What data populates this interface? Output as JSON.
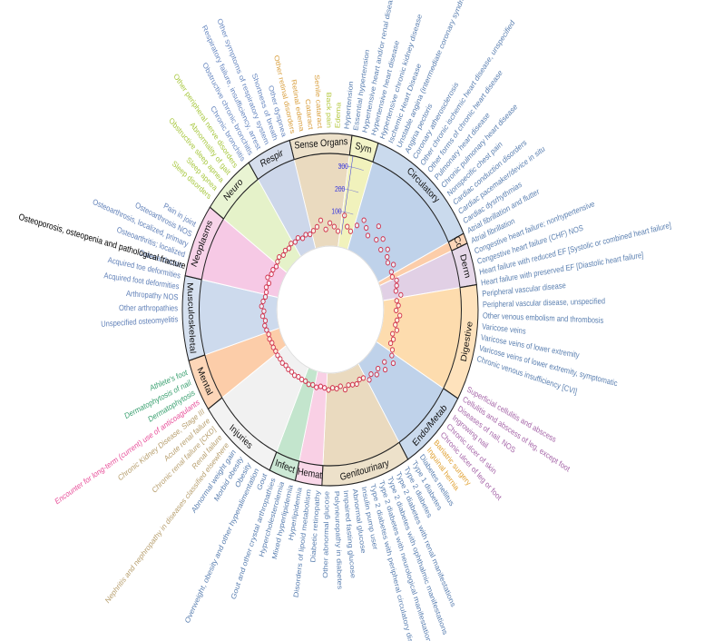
{
  "chart_data": {
    "type": "radial-manhattan",
    "rlim": [
      0,
      350
    ],
    "rticks": [
      100,
      200,
      300
    ],
    "tick_color": "#3a3adc",
    "point_color": "#d0304a",
    "annotation": "Osteoporosis, osteopenia and pathological fracture",
    "sectors": [
      {
        "name": "Sense Organs",
        "color": "#e6d4b4",
        "label_color": "#d9a040",
        "values": [
          22,
          35,
          60,
          18,
          45,
          30,
          12
        ]
      },
      {
        "name": "Sym",
        "color": "#eef0b0",
        "label_color": "#b5c840",
        "values": [
          85,
          40,
          25
        ]
      },
      {
        "name": "Circulatory",
        "color": "#b4cae6",
        "label_color": "#5a7fb0",
        "values": [
          60,
          95,
          70,
          45,
          110,
          55,
          80,
          38,
          65,
          42,
          30,
          50,
          25
        ]
      },
      {
        "name": "Cd",
        "color": "#fcc49a",
        "label_color": "#f0a060",
        "values": [
          20
        ]
      },
      {
        "name": "Derm",
        "color": "#dcc8e0",
        "label_color": "#a565a8",
        "values": [
          35,
          28,
          18,
          40
        ]
      },
      {
        "name": "Digestive",
        "color": "#fdd6a0",
        "label_color": "#e0a030",
        "values": [
          15,
          22,
          10,
          30,
          18,
          12,
          25,
          8,
          20,
          14,
          35
        ]
      },
      {
        "name": "Endo/Metab",
        "color": "#b4cae6",
        "label_color": "#5a7fb0",
        "values": [
          45,
          70,
          30,
          55,
          25,
          40,
          20,
          35
        ]
      },
      {
        "name": "Genitourinary",
        "color": "#e6d4b4",
        "label_color": "#b8a070",
        "values": [
          12,
          8,
          20,
          15,
          10,
          25,
          6,
          14,
          9,
          18
        ]
      },
      {
        "name": "Hemat",
        "color": "#f8c8e0",
        "label_color": "#e8509a",
        "values": [
          10,
          6,
          14
        ]
      },
      {
        "name": "Infect",
        "color": "#b8e0c4",
        "label_color": "#3aa070",
        "values": [
          8,
          12,
          5
        ]
      },
      {
        "name": "Injuries",
        "color": "#eeeeee",
        "label_color": "#888888",
        "values": [
          6,
          4,
          9,
          5,
          7,
          3,
          8,
          5,
          6
        ]
      },
      {
        "name": "Mental",
        "color": "#fcc49a",
        "label_color": "#f0a060",
        "values": [
          4,
          6,
          3,
          8,
          5
        ]
      },
      {
        "name": "Musculoskeletal",
        "color": "#c4d4ea",
        "label_color": "#6080b8",
        "values": [
          10,
          15,
          8,
          20,
          12,
          25,
          18,
          9
        ]
      },
      {
        "name": "Neoplasms",
        "color": "#f4c0e0",
        "label_color": "#d060b0",
        "values": [
          8,
          14,
          6,
          22,
          10,
          12,
          5
        ]
      },
      {
        "name": "Neuro",
        "color": "#e0f0c0",
        "label_color": "#a8c840",
        "values": [
          12,
          18,
          8,
          15,
          10,
          20
        ]
      },
      {
        "name": "Respir",
        "color": "#c4d0e6",
        "label_color": "#6888c0",
        "values": [
          14,
          22,
          10,
          18,
          12
        ]
      }
    ],
    "labels": [
      {
        "text": "Other retinal disorders",
        "group": "Sense Organs"
      },
      {
        "text": "Retinal edema",
        "group": "Sense Organs"
      },
      {
        "text": "Cataract",
        "group": "Sense Organs"
      },
      {
        "text": "Senile cataract",
        "group": "Sense Organs"
      },
      {
        "text": "Back pain",
        "group": "Sym"
      },
      {
        "text": "Edema",
        "group": "Sym"
      },
      {
        "text": "Hypertension",
        "group": "Circulatory"
      },
      {
        "text": "Essential hypertension",
        "group": "Circulatory"
      },
      {
        "text": "Hypertensive heart and/or renal disease",
        "group": "Circulatory"
      },
      {
        "text": "Hypertensive heart disease",
        "group": "Circulatory"
      },
      {
        "text": "Hypertensive chronic kidney disease",
        "group": "Circulatory"
      },
      {
        "text": "Ischemic Heart Disease",
        "group": "Circulatory"
      },
      {
        "text": "Unstable angina (intermediate coronary syndrome)",
        "group": "Circulatory"
      },
      {
        "text": "Angina pectoris",
        "group": "Circulatory"
      },
      {
        "text": "Coronary atherosclerosis",
        "group": "Circulatory"
      },
      {
        "text": "Other chronic ischemic heart disease, unspecified",
        "group": "Circulatory"
      },
      {
        "text": "Other forms of chronic heart disease",
        "group": "Circulatory"
      },
      {
        "text": "Pulmonary heart disease",
        "group": "Circulatory"
      },
      {
        "text": "Chronic pulmonary heart disease",
        "group": "Circulatory"
      },
      {
        "text": "Nonspecific chest pain",
        "group": "Circulatory"
      },
      {
        "text": "Cardiac conduction disorders",
        "group": "Circulatory"
      },
      {
        "text": "Cardiac pacemaker/device in situ",
        "group": "Circulatory"
      },
      {
        "text": "Cardiac dysrhythmias",
        "group": "Circulatory"
      },
      {
        "text": "Atrial fibrillation and flutter",
        "group": "Circulatory"
      },
      {
        "text": "Atrial fibrillation",
        "group": "Circulatory"
      },
      {
        "text": "Congestive heart failure; nonhypertensive",
        "group": "Circulatory"
      },
      {
        "text": "Congestive heart failure (CHF) NOS",
        "group": "Circulatory"
      },
      {
        "text": "Heart failure with reduced EF [Systolic or combined heart failure]",
        "group": "Circulatory"
      },
      {
        "text": "Heart failure with preserved EF [Diastolic heart failure]",
        "group": "Circulatory"
      },
      {
        "text": "Peripheral vascular disease",
        "group": "Circulatory"
      },
      {
        "text": "Peripheral vascular disease, unspecified",
        "group": "Circulatory"
      },
      {
        "text": "Other venous embolism and thrombosis",
        "group": "Circulatory"
      },
      {
        "text": "Varicose veins",
        "group": "Circulatory"
      },
      {
        "text": "Varicose veins of lower extremity",
        "group": "Circulatory"
      },
      {
        "text": "Varicose veins of lower extremity, symptomatic",
        "group": "Circulatory"
      },
      {
        "text": "Chronic venous insufficiency [CVI]",
        "group": "Circulatory"
      },
      {
        "text": "Superficial cellulitis and abscess",
        "group": "Derm"
      },
      {
        "text": "Cellulitis and abscess of leg, except foot",
        "group": "Derm"
      },
      {
        "text": "Diseases of nail, NOS",
        "group": "Derm"
      },
      {
        "text": "Ingrowing nail",
        "group": "Derm"
      },
      {
        "text": "Chronic ulcer of skin",
        "group": "Derm"
      },
      {
        "text": "Chronic ulcer of leg or foot",
        "group": "Derm"
      },
      {
        "text": "Bariatric surgery",
        "group": "Digestive"
      },
      {
        "text": "Inguinal hernia",
        "group": "Digestive"
      },
      {
        "text": "Diabetes mellitus",
        "group": "Endo/Metab"
      },
      {
        "text": "Type 1 diabetes",
        "group": "Endo/Metab"
      },
      {
        "text": "Type 2 diabetes",
        "group": "Endo/Metab"
      },
      {
        "text": "Type 2 diabetes with renal manifestations",
        "group": "Endo/Metab"
      },
      {
        "text": "Type 2 diabetes with ophthalmic manifestations",
        "group": "Endo/Metab"
      },
      {
        "text": "Type 2 diabetes with neurological manifestations",
        "group": "Endo/Metab"
      },
      {
        "text": "Type 2 diabetes with peripheral circulatory disorders",
        "group": "Endo/Metab"
      },
      {
        "text": "Insulin pump user",
        "group": "Endo/Metab"
      },
      {
        "text": "Abnormal glucose",
        "group": "Endo/Metab"
      },
      {
        "text": "Impaired fasting glucose",
        "group": "Endo/Metab"
      },
      {
        "text": "Polyneuropathy in diabetes",
        "group": "Endo/Metab"
      },
      {
        "text": "Other abnormal glucose",
        "group": "Endo/Metab"
      },
      {
        "text": "Diabetic retinopathy",
        "group": "Endo/Metab"
      },
      {
        "text": "Disorders of lipoid metabolism",
        "group": "Endo/Metab"
      },
      {
        "text": "Hyperlipidemia",
        "group": "Endo/Metab"
      },
      {
        "text": "Mixed hyperlipidemia",
        "group": "Endo/Metab"
      },
      {
        "text": "Hypercholesterolemia",
        "group": "Endo/Metab"
      },
      {
        "text": "Gout and other crystal arthropathies",
        "group": "Endo/Metab"
      },
      {
        "text": "Gout",
        "group": "Endo/Metab"
      },
      {
        "text": "Overweight, obesity and other hyperalimentation",
        "group": "Endo/Metab"
      },
      {
        "text": "Obesity",
        "group": "Endo/Metab"
      },
      {
        "text": "Morbid obesity",
        "group": "Endo/Metab"
      },
      {
        "text": "Abnormal weight gain",
        "group": "Endo/Metab"
      },
      {
        "text": "Nephritis and nephropathy in diseases classified elsewhere",
        "group": "Genitourinary"
      },
      {
        "text": "Renal failure",
        "group": "Genitourinary"
      },
      {
        "text": "Chronic renal failure [CKD]",
        "group": "Genitourinary"
      },
      {
        "text": "Acute renal failure",
        "group": "Genitourinary"
      },
      {
        "text": "Chronic Kidney Disease, Stage III",
        "group": "Genitourinary"
      },
      {
        "text": "Encounter for long-term (current) use of anticoagulants",
        "group": "Hemat"
      },
      {
        "text": "Dermatophytosis",
        "group": "Infect"
      },
      {
        "text": "Dermatophytosis of nail",
        "group": "Infect"
      },
      {
        "text": "Athlete's foot",
        "group": "Infect"
      },
      {
        "text": "Unspecified osteomyelitis",
        "group": "Musculoskeletal"
      },
      {
        "text": "Other arthropathies",
        "group": "Musculoskeletal"
      },
      {
        "text": "Arthropathy NOS",
        "group": "Musculoskeletal"
      },
      {
        "text": "Acquired foot deformities",
        "group": "Musculoskeletal"
      },
      {
        "text": "Acquired toe deformities",
        "group": "Musculoskeletal"
      },
      {
        "text": "Osteoarthrosis",
        "group": "Musculoskeletal"
      },
      {
        "text": "Osteoarthritis; localized",
        "group": "Musculoskeletal"
      },
      {
        "text": "Osteoarthrosis, localized, primary",
        "group": "Musculoskeletal"
      },
      {
        "text": "Osteoarthrosis NOS",
        "group": "Musculoskeletal"
      },
      {
        "text": "Pain in joint",
        "group": "Musculoskeletal"
      },
      {
        "text": "Sleep disorders",
        "group": "Neuro"
      },
      {
        "text": "Sleep apnea",
        "group": "Neuro"
      },
      {
        "text": "Obstructive sleep apnea",
        "group": "Neuro"
      },
      {
        "text": "Abnormality of gait",
        "group": "Neuro"
      },
      {
        "text": "Other peripheral nerve disorders",
        "group": "Neuro"
      },
      {
        "text": "Chronic bronchitis",
        "group": "Respir"
      },
      {
        "text": "Obstructive chronic bronchitis",
        "group": "Respir"
      },
      {
        "text": "Respiratory failure, insufficiency, arrest",
        "group": "Respir"
      },
      {
        "text": "Other symptoms of respiratory system",
        "group": "Respir"
      },
      {
        "text": "Shortness of breath",
        "group": "Respir"
      },
      {
        "text": "Other dyspnea",
        "group": "Respir"
      }
    ]
  }
}
